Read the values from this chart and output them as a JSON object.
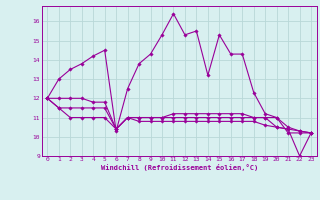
{
  "xlabel": "Windchill (Refroidissement éolien,°C)",
  "background_color": "#d8f0f0",
  "line_color": "#990099",
  "grid_color": "#b8d8d8",
  "xlim": [
    -0.5,
    23.5
  ],
  "ylim": [
    9.0,
    16.8
  ],
  "yticks": [
    9,
    10,
    11,
    12,
    13,
    14,
    15,
    16
  ],
  "xticks": [
    0,
    1,
    2,
    3,
    4,
    5,
    6,
    7,
    8,
    9,
    10,
    11,
    12,
    13,
    14,
    15,
    16,
    17,
    18,
    19,
    20,
    21,
    22,
    23
  ],
  "hours": [
    0,
    1,
    2,
    3,
    4,
    5,
    6,
    7,
    8,
    9,
    10,
    11,
    12,
    13,
    14,
    15,
    16,
    17,
    18,
    19,
    20,
    21,
    22,
    23
  ],
  "line1": [
    12.0,
    13.0,
    13.5,
    13.8,
    14.2,
    14.5,
    10.3,
    12.5,
    13.8,
    14.3,
    15.3,
    16.4,
    15.3,
    15.5,
    13.2,
    15.3,
    14.3,
    14.3,
    12.3,
    11.2,
    11.0,
    10.2,
    10.2,
    10.2
  ],
  "line2": [
    12.0,
    12.0,
    12.0,
    12.0,
    11.8,
    11.8,
    10.4,
    11.0,
    11.0,
    11.0,
    11.0,
    11.2,
    11.2,
    11.2,
    11.2,
    11.2,
    11.2,
    11.2,
    11.0,
    11.0,
    10.5,
    10.4,
    10.3,
    10.2
  ],
  "line3": [
    12.0,
    11.5,
    11.0,
    11.0,
    11.0,
    11.0,
    10.4,
    11.0,
    11.0,
    11.0,
    11.0,
    11.0,
    11.0,
    11.0,
    11.0,
    11.0,
    11.0,
    11.0,
    11.0,
    11.0,
    11.0,
    10.5,
    10.3,
    10.2
  ],
  "line4": [
    12.0,
    11.5,
    11.5,
    11.5,
    11.5,
    11.5,
    10.4,
    11.0,
    10.8,
    10.8,
    10.8,
    10.8,
    10.8,
    10.8,
    10.8,
    10.8,
    10.8,
    10.8,
    10.8,
    10.6,
    10.5,
    10.4,
    9.0,
    10.2
  ]
}
